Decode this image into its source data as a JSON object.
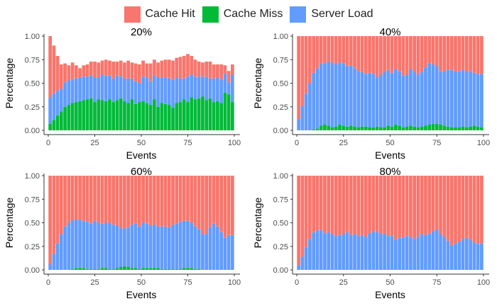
{
  "legend": [
    {
      "label": "Cache Hit",
      "color": "#F8766D"
    },
    {
      "label": "Cache Miss",
      "color": "#00BA38"
    },
    {
      "label": "Server Load",
      "color": "#619CFF"
    }
  ],
  "chart_data": [
    {
      "type": "bar",
      "stacked": true,
      "title": "20%",
      "xlabel": "Events",
      "ylabel": "Percentage",
      "xlim": [
        0,
        100
      ],
      "ylim": [
        0,
        1
      ],
      "xticks": [
        "0",
        "25",
        "50",
        "75",
        "100"
      ],
      "yticks": [
        "0.00",
        "0.25",
        "0.50",
        "0.75",
        "1.00"
      ],
      "x_start": 1,
      "x_step": 2,
      "series": [
        {
          "name": "Cache Miss",
          "color": "#00BA38",
          "values": [
            0.07,
            0.11,
            0.16,
            0.2,
            0.25,
            0.27,
            0.29,
            0.3,
            0.31,
            0.32,
            0.33,
            0.34,
            0.3,
            0.33,
            0.32,
            0.31,
            0.33,
            0.3,
            0.32,
            0.34,
            0.31,
            0.29,
            0.33,
            0.28,
            0.3,
            0.31,
            0.29,
            0.27,
            0.33,
            0.25,
            0.29,
            0.28,
            0.27,
            0.24,
            0.29,
            0.3,
            0.33,
            0.3,
            0.35,
            0.33,
            0.34,
            0.36,
            0.32,
            0.34,
            0.3,
            0.31,
            0.29,
            0.4,
            0.38,
            0.3
          ]
        },
        {
          "name": "Server Load",
          "color": "#619CFF",
          "values": [
            0.28,
            0.28,
            0.26,
            0.24,
            0.26,
            0.26,
            0.25,
            0.25,
            0.25,
            0.25,
            0.24,
            0.24,
            0.26,
            0.23,
            0.27,
            0.27,
            0.25,
            0.25,
            0.26,
            0.23,
            0.24,
            0.26,
            0.22,
            0.24,
            0.2,
            0.26,
            0.27,
            0.25,
            0.25,
            0.31,
            0.27,
            0.28,
            0.28,
            0.3,
            0.27,
            0.25,
            0.22,
            0.27,
            0.24,
            0.24,
            0.23,
            0.21,
            0.25,
            0.21,
            0.25,
            0.25,
            0.25,
            0.2,
            0.13,
            0.29
          ]
        },
        {
          "name": "Cache Hit",
          "color": "#F8766D",
          "values": [
            0.65,
            0.51,
            0.37,
            0.26,
            0.2,
            0.16,
            0.18,
            0.14,
            0.1,
            0.12,
            0.13,
            0.15,
            0.17,
            0.16,
            0.15,
            0.17,
            0.16,
            0.18,
            0.15,
            0.17,
            0.17,
            0.19,
            0.17,
            0.19,
            0.2,
            0.17,
            0.15,
            0.19,
            0.17,
            0.16,
            0.18,
            0.19,
            0.2,
            0.2,
            0.21,
            0.23,
            0.24,
            0.24,
            0.2,
            0.18,
            0.16,
            0.15,
            0.16,
            0.18,
            0.15,
            0.14,
            0.16,
            0.09,
            0.12,
            0.11
          ]
        }
      ]
    },
    {
      "type": "bar",
      "stacked": true,
      "title": "40%",
      "xlabel": "Events",
      "ylabel": "Percentage",
      "xlim": [
        0,
        100
      ],
      "ylim": [
        0,
        1
      ],
      "xticks": [
        "0",
        "25",
        "50",
        "75",
        "100"
      ],
      "yticks": [
        "0.00",
        "0.25",
        "0.50",
        "0.75",
        "1.00"
      ],
      "x_start": 1,
      "x_step": 2,
      "series": [
        {
          "name": "Cache Miss",
          "color": "#00BA38",
          "values": [
            0,
            0,
            0,
            0,
            0.01,
            0.02,
            0.05,
            0.06,
            0.05,
            0.03,
            0.04,
            0.06,
            0.05,
            0.04,
            0.05,
            0.04,
            0.03,
            0.04,
            0.04,
            0.03,
            0.03,
            0.04,
            0.03,
            0.03,
            0.05,
            0.04,
            0.06,
            0.05,
            0.03,
            0.04,
            0.05,
            0.04,
            0.03,
            0.04,
            0.05,
            0.06,
            0.07,
            0.07,
            0.06,
            0.05,
            0.04,
            0.03,
            0.03,
            0.03,
            0.04,
            0.03,
            0.04,
            0.05,
            0.04,
            0.03
          ]
        },
        {
          "name": "Server Load",
          "color": "#619CFF",
          "values": [
            0.12,
            0.26,
            0.39,
            0.5,
            0.6,
            0.64,
            0.66,
            0.65,
            0.68,
            0.69,
            0.66,
            0.66,
            0.66,
            0.64,
            0.64,
            0.62,
            0.6,
            0.58,
            0.56,
            0.58,
            0.57,
            0.52,
            0.56,
            0.59,
            0.59,
            0.57,
            0.59,
            0.58,
            0.55,
            0.55,
            0.6,
            0.58,
            0.56,
            0.58,
            0.62,
            0.65,
            0.63,
            0.61,
            0.57,
            0.57,
            0.6,
            0.61,
            0.6,
            0.6,
            0.6,
            0.59,
            0.59,
            0.56,
            0.56,
            0.57
          ]
        },
        {
          "name": "Cache Hit",
          "color": "#F8766D",
          "values": [
            0.88,
            0.74,
            0.61,
            0.5,
            0.39,
            0.34,
            0.29,
            0.29,
            0.27,
            0.28,
            0.3,
            0.28,
            0.29,
            0.32,
            0.31,
            0.34,
            0.37,
            0.38,
            0.4,
            0.39,
            0.4,
            0.44,
            0.41,
            0.38,
            0.36,
            0.39,
            0.35,
            0.37,
            0.42,
            0.41,
            0.35,
            0.38,
            0.41,
            0.38,
            0.33,
            0.29,
            0.3,
            0.32,
            0.37,
            0.38,
            0.36,
            0.36,
            0.37,
            0.37,
            0.36,
            0.38,
            0.37,
            0.39,
            0.4,
            0.4
          ]
        }
      ]
    },
    {
      "type": "bar",
      "stacked": true,
      "title": "60%",
      "xlabel": "Events",
      "ylabel": "Percentage",
      "xlim": [
        0,
        100
      ],
      "ylim": [
        0,
        1
      ],
      "xticks": [
        "0",
        "25",
        "50",
        "75",
        "100"
      ],
      "yticks": [
        "0.00",
        "0.25",
        "0.50",
        "0.75",
        "1.00"
      ],
      "x_start": 1,
      "x_step": 2,
      "series": [
        {
          "name": "Cache Miss",
          "color": "#00BA38",
          "values": [
            0,
            0,
            0,
            0,
            0,
            0,
            0.01,
            0.02,
            0.02,
            0.02,
            0.01,
            0.01,
            0.01,
            0.01,
            0.02,
            0.02,
            0.01,
            0.01,
            0.02,
            0.03,
            0.04,
            0.03,
            0.02,
            0.02,
            0.01,
            0.02,
            0.02,
            0.02,
            0.02,
            0.02,
            0.01,
            0.01,
            0.01,
            0.01,
            0.01,
            0.01,
            0.02,
            0.02,
            0.02,
            0.01,
            0.01,
            0,
            0,
            0,
            0,
            0,
            0,
            0,
            0,
            0
          ]
        },
        {
          "name": "Server Load",
          "color": "#619CFF",
          "values": [
            0.06,
            0.17,
            0.28,
            0.38,
            0.46,
            0.5,
            0.52,
            0.51,
            0.51,
            0.5,
            0.5,
            0.48,
            0.51,
            0.49,
            0.47,
            0.48,
            0.49,
            0.47,
            0.45,
            0.41,
            0.4,
            0.42,
            0.46,
            0.47,
            0.45,
            0.48,
            0.47,
            0.45,
            0.46,
            0.44,
            0.45,
            0.45,
            0.44,
            0.47,
            0.48,
            0.5,
            0.5,
            0.5,
            0.48,
            0.45,
            0.42,
            0.38,
            0.38,
            0.45,
            0.49,
            0.46,
            0.4,
            0.34,
            0.37,
            0.37
          ]
        },
        {
          "name": "Cache Hit",
          "color": "#F8766D",
          "values": [
            0.94,
            0.83,
            0.72,
            0.62,
            0.54,
            0.5,
            0.47,
            0.47,
            0.47,
            0.48,
            0.49,
            0.51,
            0.48,
            0.5,
            0.51,
            0.5,
            0.5,
            0.52,
            0.53,
            0.56,
            0.56,
            0.55,
            0.52,
            0.51,
            0.54,
            0.5,
            0.51,
            0.53,
            0.52,
            0.54,
            0.54,
            0.54,
            0.55,
            0.52,
            0.51,
            0.49,
            0.48,
            0.48,
            0.5,
            0.54,
            0.57,
            0.62,
            0.62,
            0.55,
            0.51,
            0.54,
            0.6,
            0.66,
            0.63,
            0.63
          ]
        }
      ]
    },
    {
      "type": "bar",
      "stacked": true,
      "title": "80%",
      "xlabel": "Events",
      "ylabel": "Percentage",
      "xlim": [
        0,
        100
      ],
      "ylim": [
        0,
        1
      ],
      "xticks": [
        "0",
        "25",
        "50",
        "75",
        "100"
      ],
      "yticks": [
        "0.00",
        "0.25",
        "0.50",
        "0.75",
        "1.00"
      ],
      "x_start": 1,
      "x_step": 2,
      "series": [
        {
          "name": "Cache Miss",
          "color": "#00BA38",
          "values": [
            0,
            0,
            0,
            0,
            0,
            0,
            0,
            0,
            0,
            0,
            0,
            0,
            0,
            0,
            0,
            0,
            0,
            0,
            0,
            0,
            0,
            0,
            0,
            0,
            0,
            0,
            0,
            0,
            0,
            0,
            0,
            0,
            0,
            0,
            0,
            0,
            0,
            0,
            0,
            0,
            0,
            0,
            0,
            0,
            0,
            0,
            0,
            0,
            0,
            0
          ]
        },
        {
          "name": "Server Load",
          "color": "#619CFF",
          "values": [
            0.05,
            0.14,
            0.24,
            0.33,
            0.4,
            0.42,
            0.42,
            0.39,
            0.4,
            0.38,
            0.36,
            0.37,
            0.38,
            0.4,
            0.37,
            0.38,
            0.36,
            0.37,
            0.35,
            0.39,
            0.41,
            0.4,
            0.38,
            0.38,
            0.36,
            0.36,
            0.32,
            0.34,
            0.34,
            0.36,
            0.34,
            0.33,
            0.35,
            0.38,
            0.37,
            0.39,
            0.41,
            0.43,
            0.38,
            0.35,
            0.31,
            0.26,
            0.28,
            0.3,
            0.33,
            0.34,
            0.32,
            0.29,
            0.28,
            0.28
          ]
        },
        {
          "name": "Cache Hit",
          "color": "#F8766D",
          "values": [
            0.95,
            0.86,
            0.76,
            0.67,
            0.6,
            0.58,
            0.58,
            0.61,
            0.6,
            0.62,
            0.64,
            0.63,
            0.62,
            0.6,
            0.63,
            0.62,
            0.64,
            0.63,
            0.65,
            0.61,
            0.59,
            0.6,
            0.62,
            0.62,
            0.64,
            0.64,
            0.68,
            0.66,
            0.66,
            0.64,
            0.66,
            0.67,
            0.65,
            0.62,
            0.63,
            0.61,
            0.59,
            0.57,
            0.62,
            0.65,
            0.69,
            0.74,
            0.72,
            0.7,
            0.67,
            0.66,
            0.68,
            0.71,
            0.72,
            0.72
          ]
        }
      ]
    }
  ]
}
